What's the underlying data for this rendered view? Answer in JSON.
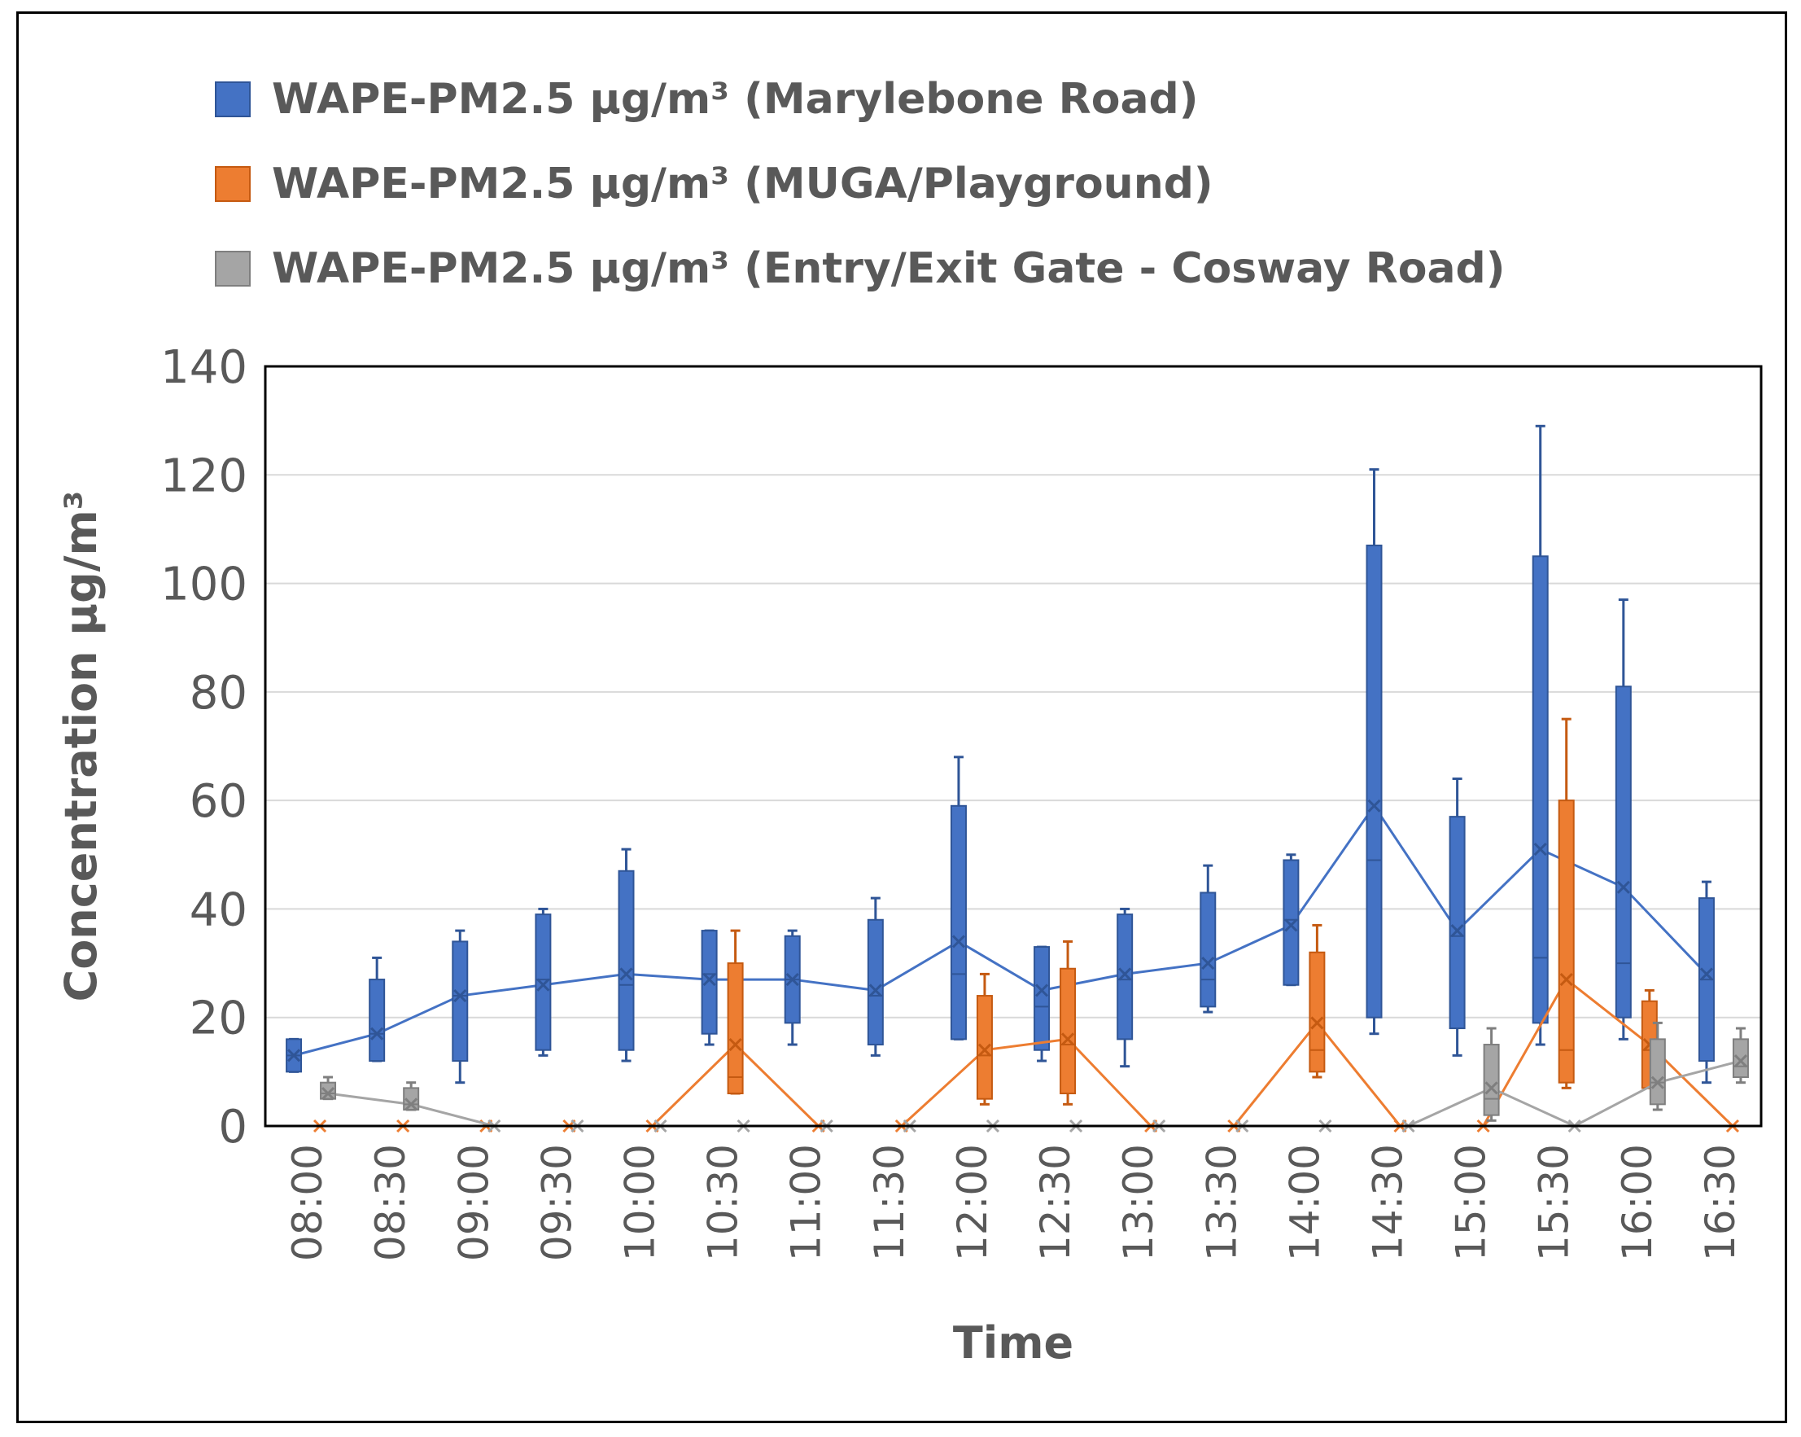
{
  "chart_data": {
    "type": "box",
    "title": "",
    "xlabel": "Time",
    "ylabel": "Concentration  µg/m³",
    "ylim": [
      0,
      140
    ],
    "yticks": [
      0,
      20,
      40,
      60,
      80,
      100,
      120,
      140
    ],
    "grid": true,
    "legend_position": "top-left",
    "categories": [
      "08:00",
      "08:30",
      "09:00",
      "09:30",
      "10:00",
      "10:30",
      "11:00",
      "11:30",
      "12:00",
      "12:30",
      "13:00",
      "13:30",
      "14:00",
      "14:30",
      "15:00",
      "15:30",
      "16:00",
      "16:30"
    ],
    "series": [
      {
        "name": "WAPE-PM2.5 µg/m³ (Marylebone Road)",
        "color": "#4472C4",
        "border": "#2F5597",
        "boxes": [
          {
            "min": 10,
            "q1": 10,
            "median": 13,
            "q3": 16,
            "max": 16,
            "mean": 13
          },
          {
            "min": 12,
            "q1": 12,
            "median": 17,
            "q3": 27,
            "max": 31,
            "mean": 17
          },
          {
            "min": 8,
            "q1": 12,
            "median": 24,
            "q3": 34,
            "max": 36,
            "mean": 24
          },
          {
            "min": 13,
            "q1": 14,
            "median": 27,
            "q3": 39,
            "max": 40,
            "mean": 26
          },
          {
            "min": 12,
            "q1": 14,
            "median": 26,
            "q3": 47,
            "max": 51,
            "mean": 28
          },
          {
            "min": 15,
            "q1": 17,
            "median": 28,
            "q3": 36,
            "max": 36,
            "mean": 27
          },
          {
            "min": 15,
            "q1": 19,
            "median": 27,
            "q3": 35,
            "max": 36,
            "mean": 27
          },
          {
            "min": 13,
            "q1": 15,
            "median": 24,
            "q3": 38,
            "max": 42,
            "mean": 25
          },
          {
            "min": 16,
            "q1": 16,
            "median": 28,
            "q3": 59,
            "max": 68,
            "mean": 34
          },
          {
            "min": 12,
            "q1": 14,
            "median": 22,
            "q3": 33,
            "max": 33,
            "mean": 25
          },
          {
            "min": 11,
            "q1": 16,
            "median": 27,
            "q3": 39,
            "max": 40,
            "mean": 28
          },
          {
            "min": 21,
            "q1": 22,
            "median": 27,
            "q3": 43,
            "max": 48,
            "mean": 30
          },
          {
            "min": 26,
            "q1": 26,
            "median": 38,
            "q3": 49,
            "max": 50,
            "mean": 37
          },
          {
            "min": 17,
            "q1": 20,
            "median": 49,
            "q3": 107,
            "max": 121,
            "mean": 59
          },
          {
            "min": 13,
            "q1": 18,
            "median": 35,
            "q3": 57,
            "max": 64,
            "mean": 36
          },
          {
            "min": 15,
            "q1": 19,
            "median": 31,
            "q3": 105,
            "max": 129,
            "mean": 51
          },
          {
            "min": 16,
            "q1": 20,
            "median": 30,
            "q3": 81,
            "max": 97,
            "mean": 44
          },
          {
            "min": 8,
            "q1": 12,
            "median": 27,
            "q3": 42,
            "max": 45,
            "mean": 28
          }
        ]
      },
      {
        "name": "WAPE-PM2.5 µg/m³ (MUGA/Playground)",
        "color": "#ED7D31",
        "border": "#C55A11",
        "boxes": [
          {
            "min": 0,
            "q1": 0,
            "median": 0,
            "q3": 0,
            "max": 0,
            "mean": 0
          },
          {
            "min": 0,
            "q1": 0,
            "median": 0,
            "q3": 0,
            "max": 0,
            "mean": 0
          },
          {
            "min": 0,
            "q1": 0,
            "median": 0,
            "q3": 0,
            "max": 0,
            "mean": 0
          },
          {
            "min": 0,
            "q1": 0,
            "median": 0,
            "q3": 0,
            "max": 0,
            "mean": 0
          },
          {
            "min": 0,
            "q1": 0,
            "median": 0,
            "q3": 0,
            "max": 0,
            "mean": 0
          },
          {
            "min": 6,
            "q1": 6,
            "median": 9,
            "q3": 30,
            "max": 36,
            "mean": 15
          },
          {
            "min": 0,
            "q1": 0,
            "median": 0,
            "q3": 0,
            "max": 0,
            "mean": 0
          },
          {
            "min": 0,
            "q1": 0,
            "median": 0,
            "q3": 0,
            "max": 0,
            "mean": 0
          },
          {
            "min": 4,
            "q1": 5,
            "median": 13,
            "q3": 24,
            "max": 28,
            "mean": 14
          },
          {
            "min": 4,
            "q1": 6,
            "median": 15,
            "q3": 29,
            "max": 34,
            "mean": 16
          },
          {
            "min": 0,
            "q1": 0,
            "median": 0,
            "q3": 0,
            "max": 0,
            "mean": 0
          },
          {
            "min": 0,
            "q1": 0,
            "median": 0,
            "q3": 0,
            "max": 0,
            "mean": 0
          },
          {
            "min": 9,
            "q1": 10,
            "median": 14,
            "q3": 32,
            "max": 37,
            "mean": 19
          },
          {
            "min": 0,
            "q1": 0,
            "median": 0,
            "q3": 0,
            "max": 0,
            "mean": 0
          },
          {
            "min": 0,
            "q1": 0,
            "median": 0,
            "q3": 0,
            "max": 0,
            "mean": 0
          },
          {
            "min": 7,
            "q1": 8,
            "median": 14,
            "q3": 60,
            "max": 75,
            "mean": 27
          },
          {
            "min": 7,
            "q1": 7,
            "median": 14,
            "q3": 23,
            "max": 25,
            "mean": 15
          },
          {
            "min": 0,
            "q1": 0,
            "median": 0,
            "q3": 0,
            "max": 0,
            "mean": 0
          }
        ]
      },
      {
        "name": "WAPE-PM2.5 µg/m³ (Entry/Exit Gate - Cosway Road)",
        "color": "#A5A5A5",
        "border": "#7F7F7F",
        "boxes": [
          {
            "min": 5,
            "q1": 5,
            "median": 6,
            "q3": 8,
            "max": 9,
            "mean": 6
          },
          {
            "min": 3,
            "q1": 3,
            "median": 4,
            "q3": 7,
            "max": 8,
            "mean": 4
          },
          {
            "min": 0,
            "q1": 0,
            "median": 0,
            "q3": 0,
            "max": 0,
            "mean": 0
          },
          {
            "min": 0,
            "q1": 0,
            "median": 0,
            "q3": 0,
            "max": 0,
            "mean": 0
          },
          {
            "min": 0,
            "q1": 0,
            "median": 0,
            "q3": 0,
            "max": 0,
            "mean": 0
          },
          {
            "min": 0,
            "q1": 0,
            "median": 0,
            "q3": 0,
            "max": 0,
            "mean": 0
          },
          {
            "min": 0,
            "q1": 0,
            "median": 0,
            "q3": 0,
            "max": 0,
            "mean": 0
          },
          {
            "min": 0,
            "q1": 0,
            "median": 0,
            "q3": 0,
            "max": 0,
            "mean": 0
          },
          {
            "min": 0,
            "q1": 0,
            "median": 0,
            "q3": 0,
            "max": 0,
            "mean": 0
          },
          {
            "min": 0,
            "q1": 0,
            "median": 0,
            "q3": 0,
            "max": 0,
            "mean": 0
          },
          {
            "min": 0,
            "q1": 0,
            "median": 0,
            "q3": 0,
            "max": 0,
            "mean": 0
          },
          {
            "min": 0,
            "q1": 0,
            "median": 0,
            "q3": 0,
            "max": 0,
            "mean": 0
          },
          {
            "min": 0,
            "q1": 0,
            "median": 0,
            "q3": 0,
            "max": 0,
            "mean": 0
          },
          {
            "min": 0,
            "q1": 0,
            "median": 0,
            "q3": 0,
            "max": 0,
            "mean": 0
          },
          {
            "min": 1,
            "q1": 2,
            "median": 5,
            "q3": 15,
            "max": 18,
            "mean": 7
          },
          {
            "min": 0,
            "q1": 0,
            "median": 0,
            "q3": 0,
            "max": 0,
            "mean": 0
          },
          {
            "min": 3,
            "q1": 4,
            "median": 8,
            "q3": 16,
            "max": 19,
            "mean": 8
          },
          {
            "min": 8,
            "q1": 9,
            "median": 11,
            "q3": 16,
            "max": 18,
            "mean": 12
          }
        ]
      }
    ]
  }
}
